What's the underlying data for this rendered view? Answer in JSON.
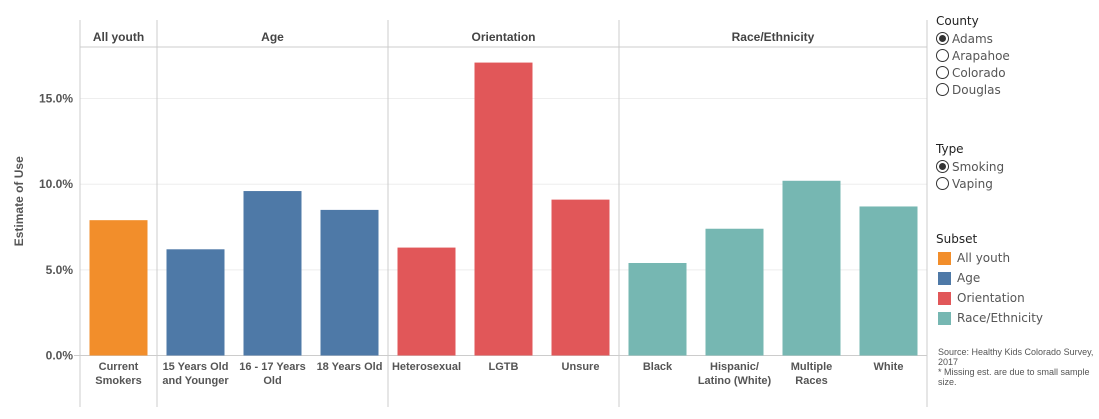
{
  "chart_data": {
    "type": "bar",
    "ylabel": "Estimate of Use",
    "ylim": [
      0,
      18
    ],
    "yticks": [
      "0.0%",
      "5.0%",
      "10.0%",
      "15.0%"
    ],
    "ytick_values": [
      0,
      5,
      10,
      15
    ],
    "groups": [
      {
        "name": "All youth",
        "color": "#f28e2b",
        "categories": [
          [
            "Current",
            "Smokers"
          ]
        ],
        "values": [
          7.9
        ]
      },
      {
        "name": "Age",
        "color": "#4e79a7",
        "categories": [
          [
            "15 Years Old",
            "and Younger"
          ],
          [
            "16 - 17 Years",
            "Old"
          ],
          [
            "18 Years Old"
          ]
        ],
        "values": [
          6.2,
          9.6,
          8.5
        ]
      },
      {
        "name": "Orientation",
        "color": "#e15759",
        "categories": [
          [
            "Heterosexual"
          ],
          [
            "LGTB"
          ],
          [
            "Unsure"
          ]
        ],
        "values": [
          6.3,
          17.1,
          9.1
        ]
      },
      {
        "name": "Race/Ethnicity",
        "color": "#76b7b2",
        "categories": [
          [
            "Black"
          ],
          [
            "Hispanic/",
            "Latino (White)"
          ],
          [
            "Multiple",
            "Races"
          ],
          [
            "White"
          ]
        ],
        "values": [
          5.4,
          7.4,
          10.2,
          8.7
        ]
      }
    ],
    "grid": true
  },
  "filters": {
    "county": {
      "title": "County",
      "options": [
        "Adams",
        "Arapahoe",
        "Colorado",
        "Douglas"
      ],
      "selected": 0
    },
    "type": {
      "title": "Type",
      "options": [
        "Smoking",
        "Vaping"
      ],
      "selected": 0
    }
  },
  "legend": {
    "title": "Subset",
    "items": [
      {
        "label": "All youth",
        "color": "#f28e2b"
      },
      {
        "label": "Age",
        "color": "#4e79a7"
      },
      {
        "label": "Orientation",
        "color": "#e15759"
      },
      {
        "label": "Race/Ethnicity",
        "color": "#76b7b2"
      }
    ]
  },
  "note": {
    "source": "Source: Healthy Kids Colorado Survey, 2017",
    "missing": "* Missing est. are due to small sample size."
  }
}
